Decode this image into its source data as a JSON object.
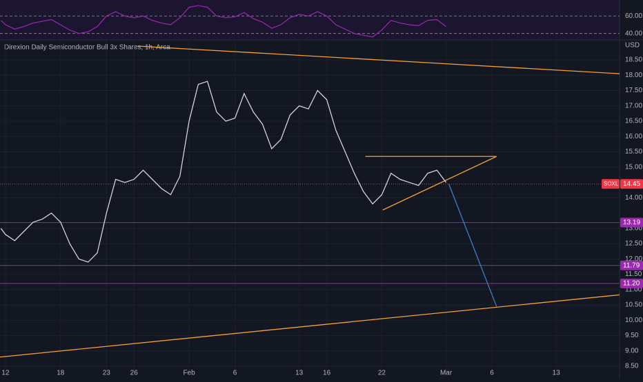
{
  "chart_data": {
    "type": "line",
    "title": "Direxion Daily Semiconductor Bull 3x Shares, 1h, Arca",
    "currency": "USD",
    "x": [
      11.5,
      12,
      13,
      14,
      15,
      16,
      17,
      18,
      19,
      20,
      21,
      22,
      23,
      24,
      25,
      26,
      27,
      28,
      29,
      30,
      31,
      32,
      33,
      34,
      35,
      36,
      37,
      38,
      39,
      40,
      41,
      42,
      43,
      44,
      45,
      46,
      47,
      48,
      49,
      50,
      51,
      52,
      53,
      54,
      55,
      56,
      57,
      58,
      59,
      60
    ],
    "series": [
      {
        "name": "SOXL",
        "color": "#d1d4dc",
        "values": [
          13.0,
          12.8,
          12.6,
          12.9,
          13.2,
          13.3,
          13.5,
          13.2,
          12.5,
          12.0,
          11.9,
          12.2,
          13.5,
          14.6,
          14.5,
          14.6,
          14.9,
          14.6,
          14.3,
          14.1,
          14.7,
          16.5,
          17.7,
          17.8,
          16.8,
          16.5,
          16.6,
          17.4,
          16.8,
          16.4,
          15.6,
          15.9,
          16.7,
          17.0,
          16.9,
          17.5,
          17.2,
          16.2,
          15.5,
          14.8,
          14.2,
          13.8,
          14.1,
          14.8,
          14.6,
          14.5,
          14.4,
          14.8,
          14.9,
          14.5
        ]
      }
    ],
    "rsi": {
      "color": "#9c27b0",
      "values": [
        55,
        50,
        45,
        48,
        52,
        54,
        56,
        50,
        44,
        40,
        42,
        48,
        60,
        65,
        60,
        58,
        60,
        55,
        52,
        50,
        58,
        70,
        72,
        70,
        60,
        58,
        59,
        64,
        57,
        53,
        46,
        50,
        58,
        62,
        60,
        65,
        60,
        50,
        45,
        40,
        38,
        36,
        44,
        55,
        52,
        50,
        49,
        55,
        56,
        48
      ],
      "ylim": [
        35,
        76
      ],
      "yticks": [
        {
          "value": 60,
          "label": "60.00"
        },
        {
          "value": 40,
          "label": "40.00"
        }
      ]
    },
    "xlim": [
      11.4,
      78.9
    ],
    "xticks": [
      12,
      18,
      23,
      26,
      {
        "value": 32,
        "label": "Feb"
      },
      {
        "value": 37,
        "label": "6"
      },
      {
        "value": 44,
        "label": "13"
      },
      {
        "value": 47,
        "label": "16"
      },
      {
        "value": 53,
        "label": "22"
      },
      {
        "value": 60,
        "label": "Mar"
      },
      {
        "value": 65,
        "label": "6"
      },
      {
        "value": 72,
        "label": "13"
      }
    ],
    "ylim": [
      8.3,
      18.95
    ],
    "yticks": [
      {
        "value": 18.5,
        "label": "18.50"
      },
      {
        "value": 18,
        "label": "18.00"
      },
      {
        "value": 17.5,
        "label": "17.50"
      },
      {
        "value": 17,
        "label": "17.00"
      },
      {
        "value": 16.5,
        "label": "16.50"
      },
      {
        "value": 16,
        "label": "16.00"
      },
      {
        "value": 15.5,
        "label": "15.50"
      },
      {
        "value": 15,
        "label": "15.00"
      },
      {
        "value": 14,
        "label": "14.00"
      },
      {
        "value": 13,
        "label": "13.00"
      },
      {
        "value": 12.5,
        "label": "12.50"
      },
      {
        "value": 12,
        "label": "12.00"
      },
      {
        "value": 11.5,
        "label": "11.50"
      },
      {
        "value": 11,
        "label": "11.00"
      },
      {
        "value": 10.5,
        "label": "10.50"
      },
      {
        "value": 10,
        "label": "10.00"
      },
      {
        "value": 9.5,
        "label": "9.50"
      },
      {
        "value": 9,
        "label": "9.00"
      },
      {
        "value": 8.5,
        "label": "8.50"
      }
    ],
    "levels": [
      {
        "value": 13.19,
        "label": "13.19",
        "color": "#9c27b0"
      },
      {
        "value": 11.79,
        "label": "11.79",
        "color": "#9c27b0"
      },
      {
        "value": 11.2,
        "label": "11.20",
        "color": "#9c27b0"
      }
    ],
    "last_price": {
      "value": 14.45,
      "label": "14.45",
      "symbol": "SOXL",
      "color": "#f23645"
    },
    "drawings": [
      {
        "color": "#f7a034",
        "points": [
          [
            26.4,
            18.95
          ],
          [
            78.9,
            18.05
          ]
        ]
      },
      {
        "color": "#f7a034",
        "points": [
          [
            11.4,
            8.8
          ],
          [
            78.9,
            10.83
          ]
        ]
      },
      {
        "color": "#f7a034",
        "points": [
          [
            51.2,
            15.35
          ],
          [
            65.5,
            15.35
          ]
        ]
      },
      {
        "color": "#f7a034",
        "points": [
          [
            53.1,
            13.6
          ],
          [
            65.5,
            15.35
          ]
        ]
      },
      {
        "color": "#3d7fc7",
        "points": [
          [
            60.3,
            14.45
          ],
          [
            65.5,
            10.45
          ]
        ]
      }
    ]
  }
}
